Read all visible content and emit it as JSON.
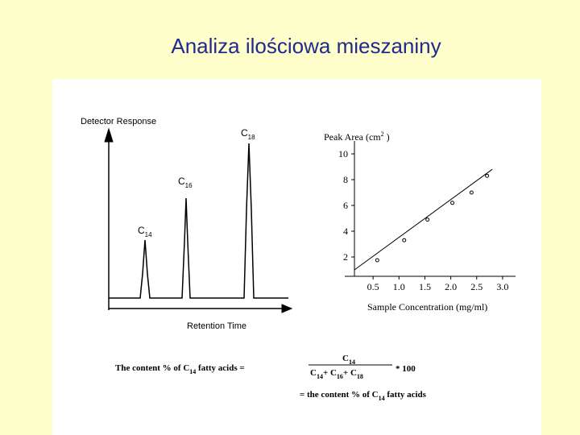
{
  "title": "Analiza ilościowa mieszaniny",
  "chromatogram": {
    "y_label": "Detector Response",
    "x_label": "Retention Time",
    "peaks": [
      [
        {
          "t": "C"
        },
        {
          "t": "14",
          "sub": true
        }
      ],
      [
        {
          "t": "C"
        },
        {
          "t": "16",
          "sub": true
        }
      ],
      [
        {
          "t": "C"
        },
        {
          "t": "18",
          "sub": true
        }
      ]
    ]
  },
  "chart_data": {
    "type": "scatter",
    "y_label": [
      {
        "t": "Peak Area (cm"
      },
      {
        "t": "2",
        "sup": true
      },
      {
        "t": " )"
      }
    ],
    "x_label": "Sample Concentration (mg/ml)",
    "x": [
      0.58,
      1.1,
      1.55,
      2.03,
      2.4,
      2.7
    ],
    "values": [
      1.75,
      3.3,
      4.9,
      6.2,
      7.0,
      8.3
    ],
    "fit": {
      "x": [
        0.14,
        2.8
      ],
      "y": [
        1.0,
        8.8
      ]
    },
    "xlim": [
      0.14,
      3.25
    ],
    "ylim": [
      0.5,
      11
    ],
    "xticks": [
      0.5,
      {
        "value": 1,
        "label": "1.0"
      },
      1.5,
      {
        "value": 2,
        "label": "2.0"
      },
      2.5,
      {
        "value": 3,
        "label": "3.0"
      }
    ],
    "yticks": [
      2,
      4,
      6,
      8,
      10
    ],
    "color": "#000000",
    "grid": false
  },
  "formula": {
    "lhs": [
      {
        "t": "The content % of C"
      },
      {
        "t": "14",
        "sub": true
      },
      {
        "t": " fatty acids ="
      }
    ],
    "numerator": [
      {
        "t": "C"
      },
      {
        "t": "14",
        "sub": true
      }
    ],
    "denominator": [
      {
        "t": "C"
      },
      {
        "t": "14",
        "sub": true
      },
      {
        "t": "+ C"
      },
      {
        "t": "16",
        "sub": true
      },
      {
        "t": "+ C"
      },
      {
        "t": "18",
        "sub": true
      }
    ],
    "factor": "* 100",
    "result": [
      {
        "t": "= the content % of C"
      },
      {
        "t": "14",
        "sub": true
      },
      {
        "t": " fatty acids"
      }
    ]
  }
}
